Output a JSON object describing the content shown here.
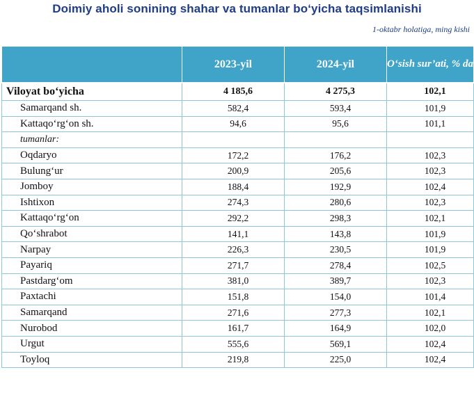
{
  "title": "Doimiy aholi sonining shahar va tumanlar bo‘yicha taqsimlanishi",
  "subtitle": "1-oktabr holatiga, ming kishi",
  "columns": [
    "",
    "2023-yil",
    "2024-yil",
    "O‘sish sur’ati, % da"
  ],
  "total": {
    "name": "Viloyat bo‘yicha",
    "v2023": "4 185,6",
    "v2024": "4 275,3",
    "growth": "102,1"
  },
  "cities": [
    {
      "name": "Samarqand sh.",
      "v2023": "582,4",
      "v2024": "593,4",
      "growth": "101,9"
    },
    {
      "name": "Kattaqo‘rg‘on sh.",
      "v2023": "94,6",
      "v2024": "95,6",
      "growth": "101,1"
    }
  ],
  "districts_label": "tumanlar:",
  "districts": [
    {
      "name": "Oqdaryo",
      "v2023": "172,2",
      "v2024": "176,2",
      "growth": "102,3"
    },
    {
      "name": "Bulung‘ur",
      "v2023": "200,9",
      "v2024": "205,6",
      "growth": "102,3"
    },
    {
      "name": "Jomboy",
      "v2023": "188,4",
      "v2024": "192,9",
      "growth": "102,4"
    },
    {
      "name": "Ishtixon",
      "v2023": "274,3",
      "v2024": "280,6",
      "growth": "102,3"
    },
    {
      "name": "Kattaqo‘rg‘on",
      "v2023": "292,2",
      "v2024": "298,3",
      "growth": "102,1"
    },
    {
      "name": "Qo‘shrabot",
      "v2023": "141,1",
      "v2024": "143,8",
      "growth": "101,9"
    },
    {
      "name": "Narpay",
      "v2023": "226,3",
      "v2024": "230,5",
      "growth": "101,9"
    },
    {
      "name": "Payariq",
      "v2023": "271,7",
      "v2024": "278,4",
      "growth": "102,5"
    },
    {
      "name": "Pastdarg‘om",
      "v2023": "381,0",
      "v2024": "389,7",
      "growth": "102,3"
    },
    {
      "name": "Paxtachi",
      "v2023": "151,8",
      "v2024": "154,0",
      "growth": "101,4"
    },
    {
      "name": "Samarqand",
      "v2023": "271,6",
      "v2024": "277,3",
      "growth": "102,1"
    },
    {
      "name": "Nurobod",
      "v2023": "161,7",
      "v2024": "164,9",
      "growth": "102,0"
    },
    {
      "name": "Urgut",
      "v2023": "555,6",
      "v2024": "569,1",
      "growth": "102,4"
    },
    {
      "name": "Toyloq",
      "v2023": "219,8",
      "v2024": "225,0",
      "growth": "102,4"
    }
  ],
  "colors": {
    "header_bg": "#40a3c8",
    "title": "#1f3c88",
    "grid": "#8cc6de"
  }
}
